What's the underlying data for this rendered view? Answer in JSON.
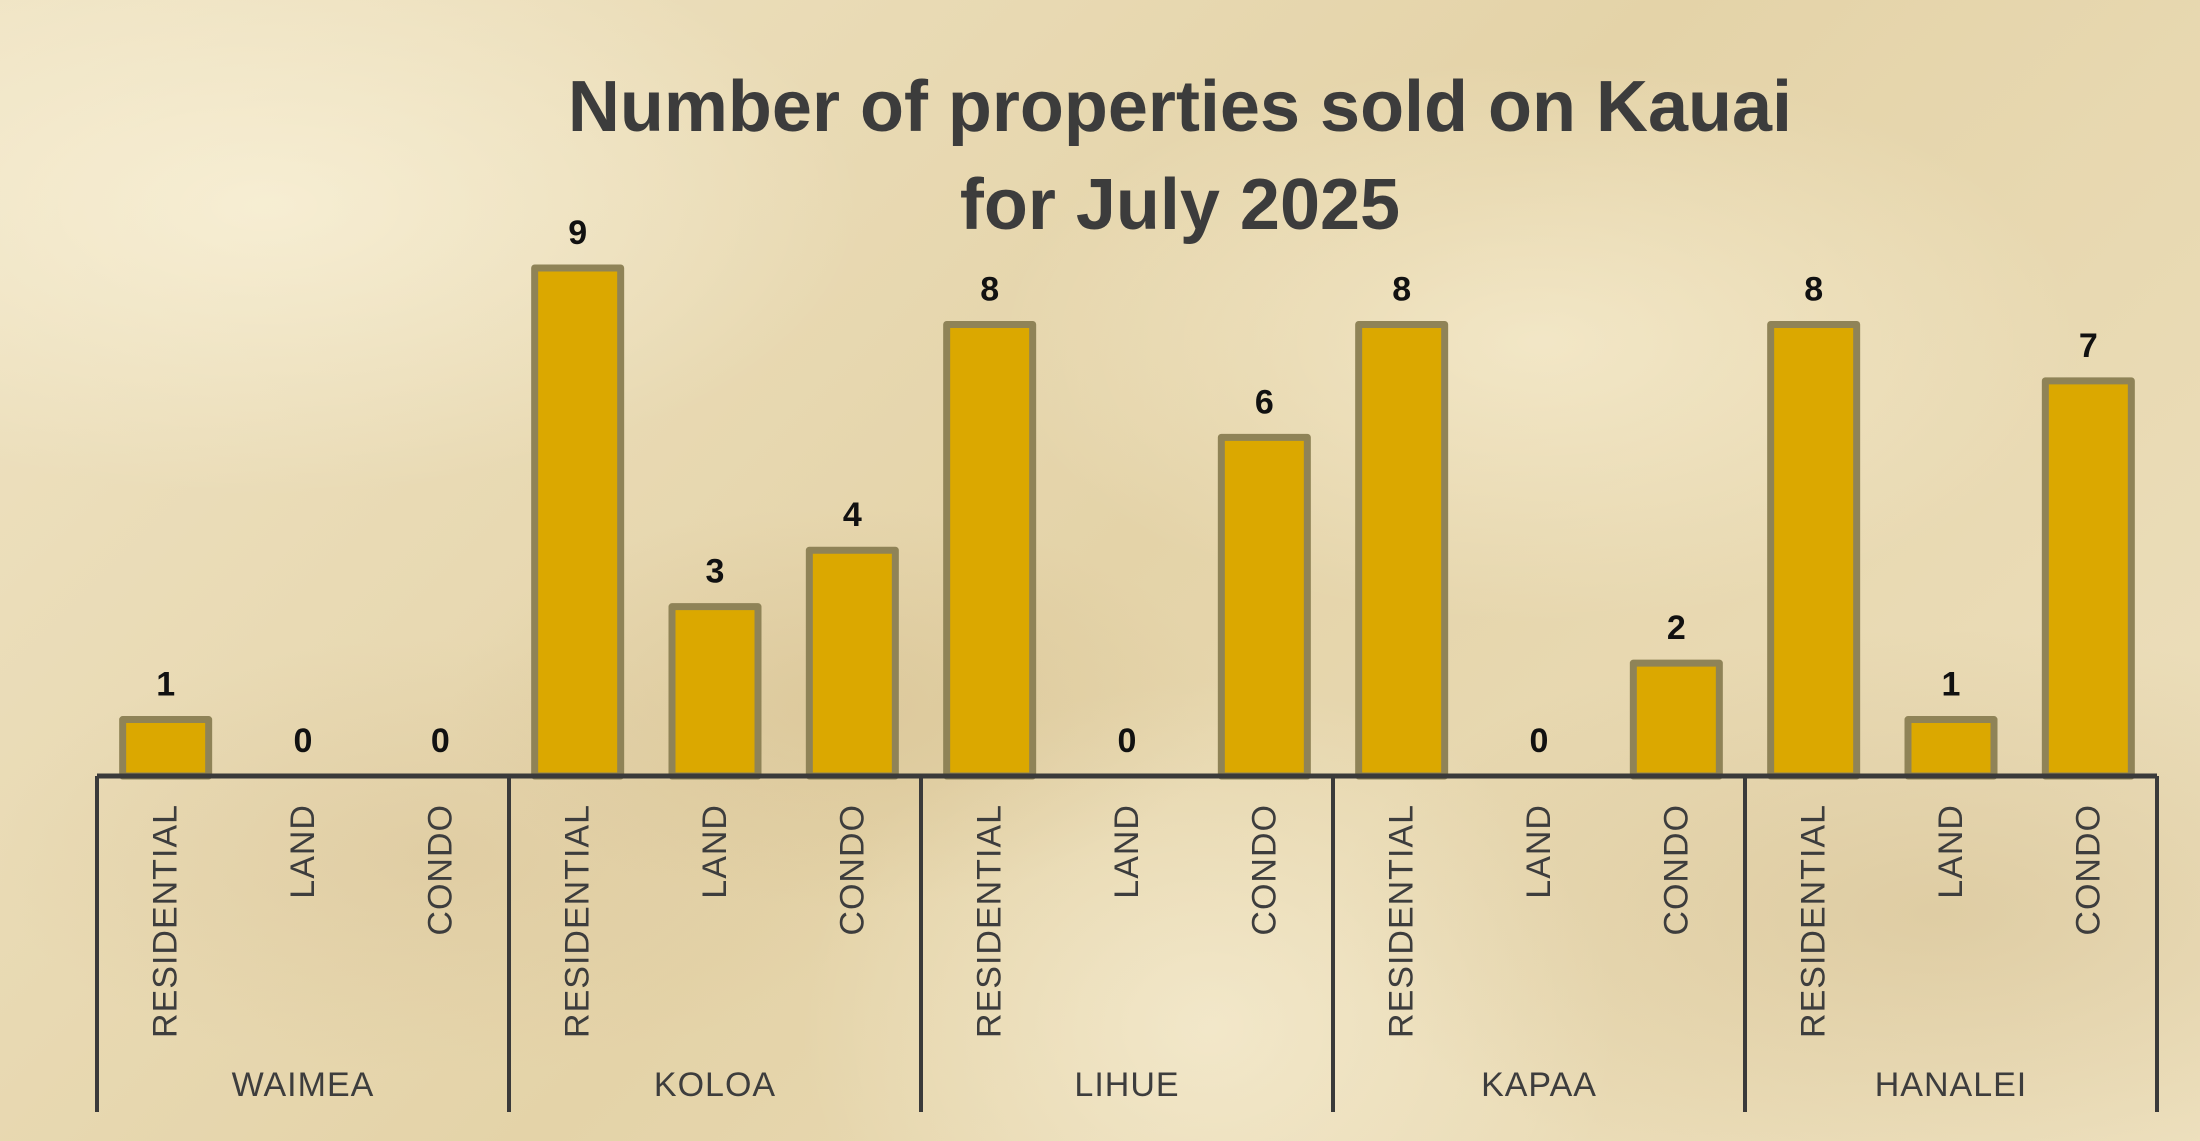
{
  "chart_data": {
    "type": "bar",
    "title_line1": "Number of properties sold on Kauai",
    "title_line2": "for  July 2025",
    "groups": [
      {
        "name": "WAIMEA",
        "categories": [
          "RESIDENTIAL",
          "LAND",
          "CONDO"
        ],
        "values": [
          1,
          0,
          0
        ]
      },
      {
        "name": "KOLOA",
        "categories": [
          "RESIDENTIAL",
          "LAND",
          "CONDO"
        ],
        "values": [
          9,
          3,
          4
        ]
      },
      {
        "name": "LIHUE",
        "categories": [
          "RESIDENTIAL",
          "LAND",
          "CONDO"
        ],
        "values": [
          8,
          0,
          6
        ]
      },
      {
        "name": "KAPAA",
        "categories": [
          "RESIDENTIAL",
          "LAND",
          "CONDO"
        ],
        "values": [
          8,
          0,
          2
        ]
      },
      {
        "name": "HANALEI",
        "categories": [
          "RESIDENTIAL",
          "LAND",
          "CONDO"
        ],
        "values": [
          8,
          1,
          7
        ]
      }
    ],
    "ylim": [
      0,
      9
    ],
    "show_data_labels": true,
    "grid": false,
    "colors": {
      "bar_fill": "#dba800",
      "bar_border": "#8f8357",
      "axis": "#3a3a3a"
    }
  }
}
